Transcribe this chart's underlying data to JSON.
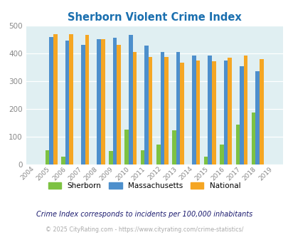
{
  "title": "Sherborn Violent Crime Index",
  "years": [
    "2004",
    "2005",
    "2006",
    "2007",
    "2008",
    "2009",
    "2010",
    "2011",
    "2012",
    "2013",
    "2014",
    "2015",
    "2016",
    "2017",
    "2018",
    "2019"
  ],
  "sherborn": [
    0,
    52,
    27,
    0,
    0,
    50,
    125,
    52,
    73,
    122,
    0,
    27,
    73,
    145,
    188,
    0
  ],
  "massachusetts": [
    0,
    460,
    447,
    432,
    452,
    457,
    467,
    430,
    406,
    406,
    394,
    393,
    376,
    355,
    337,
    0
  ],
  "national": [
    0,
    470,
    470,
    468,
    453,
    432,
    405,
    387,
    387,
    367,
    376,
    373,
    386,
    394,
    379,
    0
  ],
  "sherborn_color": "#7dc242",
  "massachusetts_color": "#4d8fcc",
  "national_color": "#f5a623",
  "bg_color": "#e0eff2",
  "title_color": "#1a6faf",
  "ylim": [
    0,
    500
  ],
  "yticks": [
    0,
    100,
    200,
    300,
    400,
    500
  ],
  "bar_width": 0.25,
  "note": "Crime Index corresponds to incidents per 100,000 inhabitants",
  "copyright": "© 2025 CityRating.com - https://www.cityrating.com/crime-statistics/"
}
